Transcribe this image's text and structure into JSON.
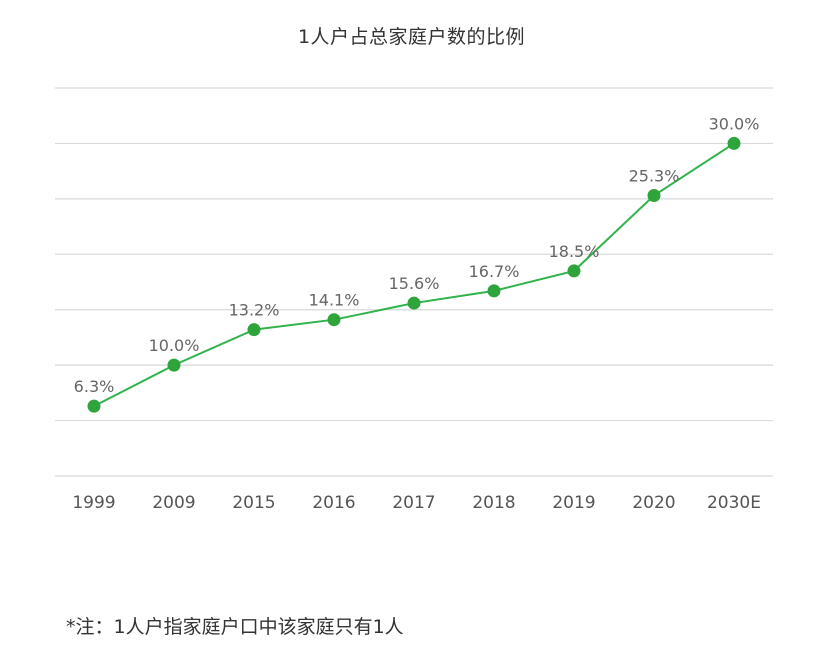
{
  "chart_data": {
    "type": "line",
    "title": "1人户占总家庭户数的比例",
    "categories": [
      "1999",
      "2009",
      "2015",
      "2016",
      "2017",
      "2018",
      "2019",
      "2020",
      "2030E"
    ],
    "series": [
      {
        "name": "1人户占总家庭户数的比例",
        "values": [
          6.3,
          10.0,
          13.2,
          14.1,
          15.6,
          16.7,
          18.5,
          25.3,
          30.0
        ],
        "labels": [
          "6.3%",
          "10.0%",
          "13.2%",
          "14.1%",
          "15.6%",
          "16.7%",
          "18.5%",
          "25.3%",
          "30.0%"
        ]
      }
    ],
    "xlabel": "",
    "ylabel": "",
    "ylim": [
      0,
      35
    ],
    "grid": true,
    "y_ticks_visible": false,
    "colors": {
      "line": "#2fb34a",
      "marker": "#2ea43a",
      "grid": "#d9d9d9"
    }
  },
  "footnote": "*注：1人户指家庭户口中该家庭只有1人"
}
